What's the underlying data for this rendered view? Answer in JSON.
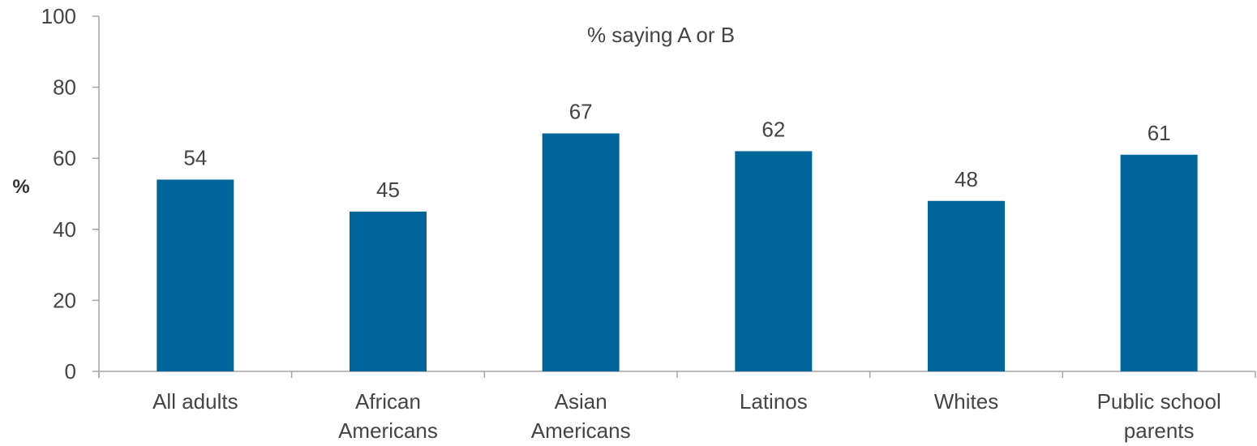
{
  "chart_data": {
    "type": "bar",
    "title": "% saying A or B",
    "ylabel": "%",
    "xlabel": "",
    "ylim": [
      0,
      100
    ],
    "yticks": [
      0,
      20,
      40,
      60,
      80,
      100
    ],
    "grid": false,
    "categories": [
      [
        "All adults"
      ],
      [
        "African",
        "Americans"
      ],
      [
        "Asian",
        "Americans"
      ],
      [
        "Latinos"
      ],
      [
        "Whites"
      ],
      [
        "Public school",
        "parents"
      ]
    ],
    "values": [
      54,
      45,
      67,
      62,
      48,
      61
    ],
    "bar_color": "#006699"
  }
}
